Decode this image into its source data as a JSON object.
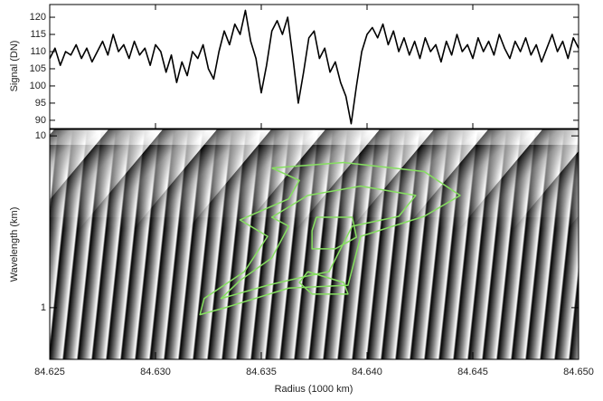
{
  "chart_data": [
    {
      "type": "line",
      "ylabel": "Signal (DN)",
      "xlim": [
        84.625,
        84.65
      ],
      "ylim": [
        87.6,
        123.7
      ],
      "yticks": [
        90,
        95,
        100,
        105,
        110,
        115,
        120
      ],
      "x": [
        84.625,
        84.62525,
        84.6255,
        84.62575,
        84.626,
        84.62625,
        84.6265,
        84.62675,
        84.627,
        84.62725,
        84.6275,
        84.62775,
        84.628,
        84.62825,
        84.6285,
        84.62875,
        84.629,
        84.62925,
        84.6295,
        84.62975,
        84.63,
        84.63025,
        84.6305,
        84.63075,
        84.631,
        84.63125,
        84.6315,
        84.63175,
        84.632,
        84.63225,
        84.6325,
        84.63275,
        84.633,
        84.63325,
        84.6335,
        84.63375,
        84.634,
        84.63425,
        84.6345,
        84.63475,
        84.635,
        84.63525,
        84.6355,
        84.63575,
        84.636,
        84.63625,
        84.6365,
        84.63675,
        84.637,
        84.63725,
        84.6375,
        84.63775,
        84.638,
        84.63825,
        84.6385,
        84.63875,
        84.639,
        84.63925,
        84.6395,
        84.63975,
        84.64,
        84.64025,
        84.6405,
        84.64075,
        84.641,
        84.64125,
        84.6415,
        84.64175,
        84.642,
        84.64225,
        84.6425,
        84.64275,
        84.643,
        84.64325,
        84.6435,
        84.64375,
        84.644,
        84.64425,
        84.6445,
        84.64475,
        84.645,
        84.64525,
        84.6455,
        84.64575,
        84.646,
        84.64625,
        84.6465,
        84.64675,
        84.647,
        84.64725,
        84.6475,
        84.64775,
        84.648,
        84.64825,
        84.6485,
        84.64875,
        84.649,
        84.64925,
        84.6495,
        84.64975,
        84.65
      ],
      "series": [
        {
          "color": "#000000",
          "values": [
            108,
            111,
            106,
            110,
            109,
            112,
            108,
            111,
            107,
            110,
            113,
            109,
            115,
            110,
            112,
            108,
            113,
            109,
            111,
            106,
            112,
            110,
            104,
            109,
            101,
            107,
            103,
            110,
            108,
            112,
            105,
            102,
            110,
            116,
            112,
            118,
            115,
            122,
            113,
            108,
            98,
            106,
            116,
            119,
            115,
            120,
            108,
            95,
            104,
            114,
            116,
            108,
            111,
            104,
            107,
            101,
            97,
            89,
            100,
            110,
            115,
            117,
            114,
            118,
            112,
            116,
            110,
            114,
            109,
            113,
            108,
            114,
            110,
            112,
            107,
            113,
            109,
            115,
            110,
            112,
            108,
            114,
            110,
            113,
            109,
            115,
            111,
            108,
            113,
            110,
            114,
            109,
            112,
            107,
            111,
            115,
            110,
            113,
            108,
            114,
            111
          ]
        }
      ]
    },
    {
      "type": "contour",
      "xlabel": "Radius (1000 km)",
      "ylabel": "Wavelength (km)",
      "xlim": [
        84.625,
        84.65
      ],
      "xticks": [
        84.625,
        {
          "value": 84.63,
          "label": "84.630"
        },
        84.635,
        {
          "value": 84.64,
          "label": "84.640"
        },
        84.645,
        {
          "value": 84.65,
          "label": "84.650"
        }
      ],
      "ylog": true,
      "ylim": [
        0.5,
        10.9
      ],
      "yticks": [
        1,
        10
      ],
      "series": [
        {
          "color": "#86e060",
          "x": [
            84.6355,
            84.6389,
            84.6427,
            84.6444,
            84.6427,
            84.6397,
            84.6391,
            84.6363,
            84.6333,
            84.6321,
            84.6323,
            84.6342,
            84.6353,
            84.634,
            84.6363,
            84.6368,
            84.6355
          ],
          "values": [
            6.5,
            7.0,
            6.2,
            4.5,
            3.4,
            2.6,
            1.35,
            1.3,
            1.0,
            0.91,
            1.13,
            1.62,
            2.6,
            3.24,
            4.3,
            5.5,
            6.5
          ]
        },
        {
          "color": "#86e060",
          "x": [
            84.6372,
            84.6397,
            84.6423,
            84.6415,
            84.6393,
            84.6382,
            84.6372,
            84.6353,
            84.6331,
            84.634,
            84.6355,
            84.6363,
            84.6355,
            84.6372
          ],
          "values": [
            4.5,
            5.1,
            4.5,
            3.4,
            2.98,
            1.62,
            1.53,
            1.35,
            1.13,
            1.44,
            1.95,
            2.98,
            3.36,
            4.5
          ]
        },
        {
          "color": "#86e060",
          "x": [
            84.6376,
            84.6393,
            84.6395,
            84.6385,
            84.6374,
            84.6374,
            84.6376
          ],
          "values": [
            3.36,
            3.36,
            2.57,
            2.2,
            2.2,
            2.8,
            3.36
          ]
        },
        {
          "color": "#86e060",
          "x": [
            84.6372,
            84.6389,
            84.6391,
            84.6374,
            84.6368,
            84.6372
          ],
          "values": [
            1.62,
            1.4,
            1.2,
            1.2,
            1.4,
            1.62
          ]
        }
      ]
    }
  ]
}
